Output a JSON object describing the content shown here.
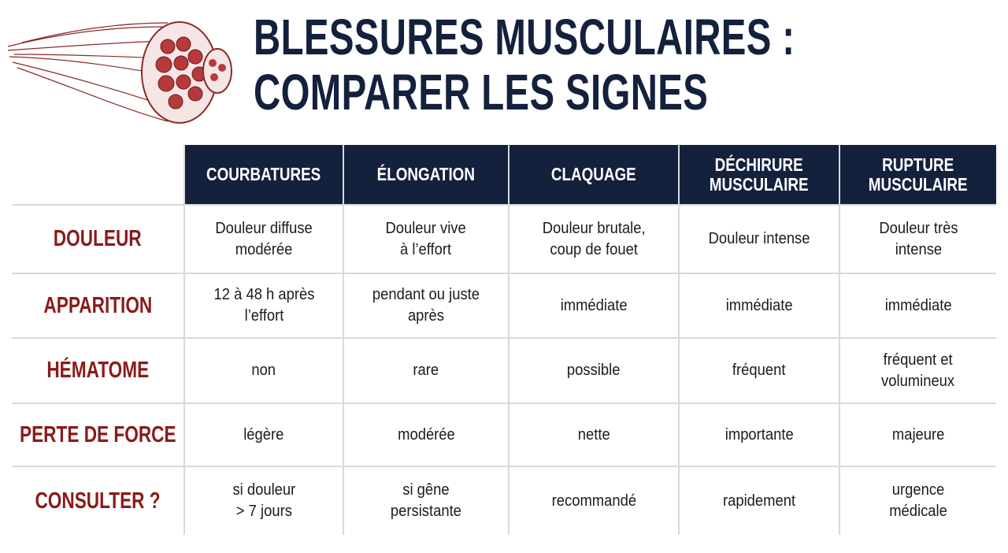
{
  "header": {
    "title_lines": [
      "BLESSURES MUSCULAIRES :",
      "COMPARER LES SIGNES"
    ]
  },
  "table": {
    "columns": [
      "COURBATURES",
      "ÉLONGATION",
      "CLAQUAGE",
      "DÉCHIRURE\nMUSCULAIRE",
      "RUPTURE\nMUSCULAIRE"
    ],
    "rows": [
      {
        "label": "DOULEUR",
        "cells": [
          "Douleur diffuse\nmodérée",
          "Douleur vive\nà l’effort",
          "Douleur brutale,\ncoup de fouet",
          "Douleur intense",
          "Douleur très\nintense"
        ]
      },
      {
        "label": "APPARITION",
        "cells": [
          "12 à 48 h après\nl’effort",
          "pendant ou juste\naprès",
          "immédiate",
          "immédiate",
          "immédiate"
        ]
      },
      {
        "label": "HÉMATOME",
        "cells": [
          "non",
          "rare",
          "possible",
          "fréquent",
          "fréquent et\nvolumineux"
        ]
      },
      {
        "label": "PERTE DE FORCE",
        "cells": [
          "légère",
          "modérée",
          "nette",
          "importante",
          "majeure"
        ]
      },
      {
        "label": "CONSULTER ?",
        "cells": [
          "si douleur\n> 7 jours",
          "si gêne\npersistante",
          "recommandé",
          "rapidement",
          "urgence\nmédicale"
        ]
      }
    ]
  }
}
